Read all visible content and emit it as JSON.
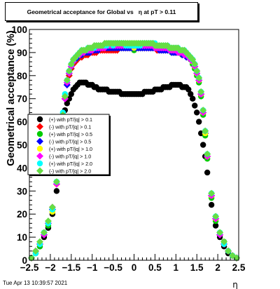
{
  "title": "Geometrical acceptance for Global vs   η at pT > 0.11",
  "timestamp": "Tue Apr 13 10:39:57 2021",
  "chart_data": {
    "type": "scatter",
    "title": "Geometrical acceptance for Global vs   η at pT > 0.11",
    "xlabel": "η",
    "ylabel": "Geometrical acceptance (%)",
    "xlim": [
      -2.5,
      2.5
    ],
    "ylim": [
      0,
      100
    ],
    "x_ticks": [
      "−2.5",
      "−2",
      "−1.5",
      "−1",
      "−0.5",
      "0",
      "0.5",
      "1",
      "1.5",
      "2",
      "2.5"
    ],
    "y_ticks": [
      "0",
      "10",
      "20",
      "30",
      "40",
      "50",
      "60",
      "70",
      "80",
      "90",
      "100"
    ],
    "grid": false,
    "legend_position": "left-middle",
    "x": [
      -2.45,
      -2.35,
      -2.25,
      -2.15,
      -2.05,
      -1.95,
      -1.85,
      -1.75,
      -1.7,
      -1.65,
      -1.6,
      -1.55,
      -1.5,
      -1.45,
      -1.4,
      -1.35,
      -1.3,
      -1.25,
      -1.2,
      -1.15,
      -1.1,
      -1.05,
      -1.0,
      -0.95,
      -0.9,
      -0.85,
      -0.8,
      -0.75,
      -0.7,
      -0.65,
      -0.6,
      -0.55,
      -0.5,
      -0.45,
      -0.4,
      -0.35,
      -0.3,
      -0.25,
      -0.2,
      -0.15,
      -0.1,
      -0.05,
      0.0,
      0.05,
      0.1,
      0.15,
      0.2,
      0.25,
      0.3,
      0.35,
      0.4,
      0.45,
      0.5,
      0.55,
      0.6,
      0.65,
      0.7,
      0.75,
      0.8,
      0.85,
      0.9,
      0.95,
      1.0,
      1.05,
      1.1,
      1.15,
      1.2,
      1.25,
      1.3,
      1.35,
      1.4,
      1.45,
      1.5,
      1.55,
      1.6,
      1.65,
      1.7,
      1.75,
      1.85,
      1.95,
      2.05,
      2.15,
      2.25,
      2.35,
      2.45
    ],
    "series": [
      {
        "name": "(+) with pT/|q| > 0.1",
        "color": "#000000",
        "values": [
          1,
          3,
          6,
          10,
          14,
          20,
          30,
          48,
          58,
          65,
          68,
          70,
          72,
          74,
          75,
          76,
          77,
          77,
          77,
          77,
          76,
          76,
          76,
          75,
          75,
          74,
          74,
          74,
          74,
          74,
          73,
          73,
          73,
          73,
          73,
          73,
          72,
          72,
          72,
          72,
          72,
          72,
          72,
          72,
          72,
          72,
          72,
          73,
          73,
          73,
          73,
          73,
          74,
          74,
          74,
          74,
          75,
          75,
          75,
          75,
          76,
          76,
          76,
          76,
          76,
          75,
          75,
          75,
          74,
          72,
          70,
          67,
          64,
          60,
          55,
          50,
          45,
          38,
          24,
          15,
          10,
          6,
          3,
          2,
          1
        ]
      },
      {
        "name": "(-) with pT/|q| > 0.1",
        "color": "#ff0000",
        "values": [
          1,
          4,
          7,
          11,
          16,
          22,
          33,
          52,
          62,
          70,
          76,
          80,
          83,
          85,
          86,
          87,
          88,
          88,
          89,
          89,
          89,
          90,
          90,
          90,
          90,
          91,
          91,
          91,
          91,
          91,
          91,
          91,
          91,
          91,
          91,
          92,
          92,
          92,
          92,
          92,
          92,
          92,
          92,
          92,
          92,
          92,
          92,
          92,
          92,
          92,
          92,
          92,
          92,
          91,
          91,
          91,
          91,
          91,
          91,
          91,
          91,
          90,
          90,
          90,
          90,
          89,
          89,
          89,
          88,
          87,
          86,
          84,
          82,
          78,
          72,
          64,
          55,
          45,
          28,
          18,
          11,
          7,
          4,
          2,
          1
        ]
      },
      {
        "name": "(+) with pT/|q| > 0.5",
        "color": "#00cc00",
        "values": [
          1,
          3,
          6,
          12,
          15,
          21,
          34,
          51,
          63,
          71,
          77,
          81,
          84,
          86,
          87,
          88,
          89,
          89,
          90,
          90,
          90,
          91,
          91,
          91,
          91,
          92,
          92,
          92,
          92,
          92,
          92,
          92,
          92,
          92,
          93,
          93,
          92,
          92,
          92,
          92,
          92,
          92,
          91,
          92,
          92,
          92,
          92,
          93,
          93,
          93,
          93,
          92,
          92,
          92,
          92,
          91,
          91,
          91,
          91,
          91,
          90,
          90,
          90,
          90,
          90,
          89,
          89,
          89,
          88,
          87,
          85,
          83,
          80,
          77,
          71,
          63,
          54,
          44,
          27,
          17,
          12,
          8,
          4,
          2,
          1
        ]
      },
      {
        "name": "(-) with pT/|q| > 0.5",
        "color": "#0000ff",
        "values": [
          1,
          4,
          7,
          11,
          16,
          22,
          33,
          52,
          62,
          70,
          76,
          81,
          84,
          86,
          87,
          88,
          89,
          89,
          90,
          90,
          90,
          90,
          91,
          91,
          91,
          91,
          92,
          92,
          92,
          92,
          92,
          92,
          92,
          92,
          92,
          92,
          92,
          92,
          92,
          92,
          92,
          92,
          92,
          92,
          92,
          92,
          92,
          92,
          92,
          92,
          92,
          92,
          92,
          92,
          91,
          91,
          91,
          91,
          91,
          91,
          90,
          90,
          90,
          90,
          90,
          89,
          89,
          88,
          88,
          87,
          86,
          84,
          81,
          78,
          72,
          64,
          55,
          45,
          28,
          18,
          11,
          7,
          4,
          2,
          1
        ]
      },
      {
        "name": "(+) with pT/|q| > 1.0",
        "color": "#ffff00",
        "values": [
          1,
          3,
          7,
          12,
          16,
          21,
          33,
          52,
          63,
          71,
          78,
          82,
          85,
          87,
          88,
          89,
          90,
          90,
          91,
          91,
          91,
          91,
          92,
          92,
          92,
          92,
          93,
          93,
          93,
          93,
          93,
          93,
          93,
          93,
          93,
          93,
          93,
          93,
          93,
          93,
          93,
          93,
          92,
          93,
          93,
          93,
          93,
          93,
          93,
          93,
          93,
          93,
          93,
          92,
          92,
          92,
          92,
          92,
          92,
          92,
          91,
          91,
          91,
          91,
          91,
          90,
          90,
          90,
          89,
          88,
          86,
          84,
          81,
          78,
          72,
          64,
          55,
          45,
          28,
          18,
          12,
          7,
          4,
          2,
          1
        ]
      },
      {
        "name": "(-) with pT/|q| > 1.0",
        "color": "#ff00ff",
        "values": [
          1,
          4,
          7,
          11,
          16,
          23,
          33,
          51,
          62,
          70,
          77,
          81,
          84,
          86,
          88,
          89,
          89,
          90,
          90,
          91,
          91,
          91,
          91,
          92,
          92,
          92,
          92,
          92,
          92,
          93,
          93,
          93,
          93,
          93,
          93,
          93,
          93,
          93,
          93,
          93,
          93,
          93,
          93,
          93,
          93,
          93,
          93,
          93,
          93,
          93,
          93,
          93,
          92,
          92,
          92,
          92,
          92,
          92,
          92,
          91,
          91,
          91,
          91,
          90,
          90,
          90,
          89,
          89,
          88,
          87,
          86,
          84,
          81,
          78,
          72,
          64,
          56,
          45,
          28,
          18,
          11,
          7,
          4,
          2,
          1
        ]
      },
      {
        "name": "(+) with pT/|q| > 2.0",
        "color": "#00ffff",
        "values": [
          1,
          3,
          7,
          12,
          16,
          22,
          34,
          53,
          64,
          72,
          78,
          82,
          85,
          87,
          88,
          89,
          90,
          91,
          91,
          91,
          92,
          92,
          92,
          92,
          93,
          93,
          93,
          93,
          93,
          93,
          94,
          94,
          93,
          94,
          94,
          94,
          94,
          94,
          93,
          93,
          93,
          93,
          93,
          93,
          93,
          93,
          94,
          94,
          94,
          94,
          94,
          94,
          94,
          93,
          93,
          93,
          93,
          93,
          93,
          92,
          92,
          92,
          92,
          92,
          91,
          91,
          91,
          90,
          89,
          88,
          87,
          85,
          82,
          79,
          73,
          65,
          56,
          46,
          29,
          19,
          12,
          7,
          4,
          2,
          1
        ]
      },
      {
        "name": "(-) with pT/|q| > 2.0",
        "color": "#66dd44",
        "values": [
          1,
          4,
          8,
          12,
          17,
          23,
          34,
          52,
          63,
          71,
          78,
          82,
          85,
          87,
          88,
          89,
          90,
          91,
          91,
          91,
          92,
          92,
          92,
          93,
          93,
          93,
          93,
          93,
          94,
          94,
          94,
          94,
          94,
          94,
          94,
          94,
          94,
          94,
          94,
          94,
          94,
          94,
          94,
          94,
          94,
          94,
          94,
          94,
          94,
          94,
          94,
          94,
          93,
          93,
          93,
          93,
          93,
          93,
          93,
          92,
          92,
          92,
          92,
          92,
          91,
          91,
          91,
          90,
          89,
          88,
          87,
          85,
          82,
          79,
          73,
          65,
          56,
          46,
          29,
          19,
          12,
          8,
          4,
          2,
          1
        ]
      }
    ]
  }
}
